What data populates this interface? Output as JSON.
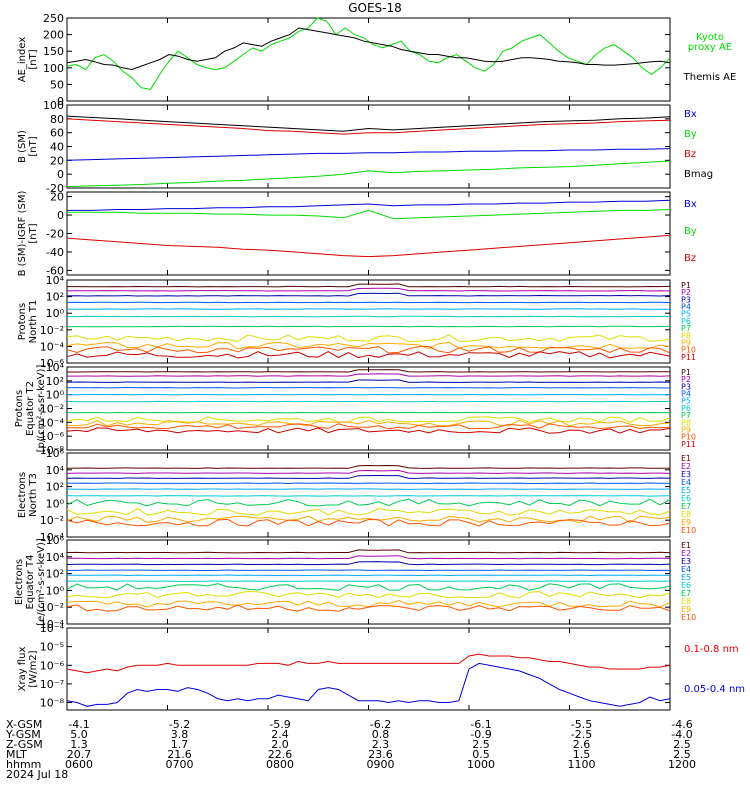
{
  "title": "GOES-18",
  "x_ticks": [
    "0600",
    "0700",
    "0800",
    "0900",
    "1000",
    "1100",
    "1200"
  ],
  "ephemeris": {
    "rows": [
      {
        "label": "X-GSM",
        "values": [
          "-4.1",
          "-5.2",
          "-5.9",
          "-6.2",
          "-6.1",
          "-5.5",
          "-4.6"
        ]
      },
      {
        "label": "Y-GSM",
        "values": [
          "5.0",
          "3.8",
          "2.4",
          "0.8",
          "-0.9",
          "-2.5",
          "-4.0"
        ]
      },
      {
        "label": "Z-GSM",
        "values": [
          "1.3",
          "1.7",
          "2.0",
          "2.3",
          "2.5",
          "2.6",
          "2.5"
        ]
      },
      {
        "label": "MLT",
        "values": [
          "20.7",
          "21.6",
          "22.6",
          "23.6",
          "0.5",
          "1.5",
          "2.5"
        ]
      },
      {
        "label": "hhmm",
        "values": [
          "0600",
          "0700",
          "0800",
          "0900",
          "1000",
          "1100",
          "1200"
        ]
      }
    ],
    "date": "2024 Jul 18"
  },
  "colors": {
    "green": "#00dd00",
    "black": "#000000",
    "blue": "#0000dd",
    "red": "#dd0000",
    "P": [
      "#550000",
      "#aa00aa",
      "#0000aa",
      "#0055ff",
      "#00aaff",
      "#00cccc",
      "#00cc55",
      "#dddd00",
      "#ffaa00",
      "#ff5500",
      "#cc0000"
    ],
    "E": [
      "#550000",
      "#aa00aa",
      "#0000aa",
      "#0055ff",
      "#00aaff",
      "#00cccc",
      "#00cc55",
      "#dddd00",
      "#ffaa00",
      "#ff5500",
      "#cc0000"
    ]
  },
  "chart_data": [
    {
      "id": "ae",
      "type": "line",
      "ylabel": [
        "AE_index",
        "[nT]"
      ],
      "yticks": [
        "250",
        "200",
        "150",
        "100",
        "50",
        "0"
      ],
      "series": [
        {
          "name": "Kyoto proxy AE",
          "color": "green"
        },
        {
          "name": "Themis AE",
          "color": "black"
        }
      ],
      "ylim": [
        0,
        250
      ],
      "values": {
        "Kyoto proxy AE": [
          105,
          110,
          95,
          130,
          140,
          120,
          90,
          70,
          40,
          35,
          80,
          120,
          150,
          130,
          110,
          100,
          95,
          100,
          120,
          140,
          160,
          150,
          170,
          180,
          190,
          210,
          220,
          250,
          240,
          200,
          220,
          200,
          190,
          170,
          160,
          170,
          180,
          150,
          140,
          120,
          115,
          130,
          140,
          120,
          100,
          90,
          110,
          150,
          160,
          180,
          190,
          200,
          175,
          150,
          130,
          120,
          110,
          140,
          160,
          170,
          150,
          130,
          100,
          80,
          100,
          130
        ],
        "Themis AE": [
          115,
          120,
          125,
          118,
          110,
          108,
          100,
          95,
          105,
          115,
          125,
          140,
          135,
          125,
          120,
          125,
          130,
          150,
          160,
          175,
          170,
          165,
          180,
          190,
          200,
          220,
          215,
          210,
          205,
          200,
          195,
          190,
          180,
          175,
          170,
          165,
          155,
          150,
          145,
          140,
          140,
          135,
          130,
          130,
          125,
          120,
          118,
          120,
          125,
          130,
          130,
          128,
          125,
          120,
          118,
          115,
          110,
          110,
          108,
          108,
          110,
          112,
          115,
          118,
          120,
          115
        ]
      }
    },
    {
      "id": "bsm",
      "type": "line",
      "ylabel": [
        "B (SM)",
        "[nT]"
      ],
      "yticks": [
        "100",
        "80",
        "60",
        "40",
        "20",
        "0",
        "-20"
      ],
      "ylim": [
        -20,
        100
      ],
      "series": [
        {
          "name": "Bx",
          "color": "blue"
        },
        {
          "name": "By",
          "color": "green"
        },
        {
          "name": "Bz",
          "color": "red"
        },
        {
          "name": "Bmag",
          "color": "black"
        }
      ],
      "values": {
        "Bx": [
          20,
          21,
          22,
          23,
          24,
          25,
          26,
          27,
          28,
          29,
          30,
          30,
          31,
          31,
          32,
          32,
          33,
          33,
          34,
          34,
          35,
          35,
          36,
          36,
          37
        ],
        "By": [
          -18,
          -17,
          -16,
          -15,
          -13,
          -12,
          -10,
          -9,
          -7,
          -5,
          -3,
          0,
          5,
          2,
          4,
          5,
          6,
          7,
          9,
          10,
          11,
          13,
          15,
          17,
          19
        ],
        "Bz": [
          80,
          78,
          76,
          74,
          72,
          70,
          68,
          66,
          63,
          62,
          60,
          58,
          60,
          60,
          62,
          64,
          66,
          68,
          70,
          72,
          73,
          74,
          76,
          77,
          78
        ],
        "Bmag": [
          84,
          82,
          80,
          78,
          76,
          74,
          72,
          70,
          68,
          66,
          64,
          62,
          66,
          64,
          66,
          68,
          70,
          72,
          74,
          76,
          77,
          78,
          80,
          81,
          83
        ]
      }
    },
    {
      "id": "bigrf",
      "type": "line",
      "ylabel": [
        "B (SM)-IGRF (SM)",
        "[nT]"
      ],
      "yticks": [
        "20",
        "0",
        "-20",
        "-40",
        "-60"
      ],
      "ylim": [
        -65,
        25
      ],
      "series": [
        {
          "name": "Bx",
          "color": "blue"
        },
        {
          "name": "By",
          "color": "green"
        },
        {
          "name": "Bz",
          "color": "red"
        }
      ],
      "values": {
        "Bx": [
          5,
          5,
          6,
          6,
          7,
          7,
          8,
          8,
          9,
          9,
          10,
          11,
          12,
          10,
          11,
          11,
          12,
          12,
          13,
          13,
          14,
          14,
          15,
          15,
          16
        ],
        "By": [
          3,
          3,
          3,
          2,
          2,
          2,
          1,
          1,
          0,
          0,
          -1,
          -3,
          5,
          -4,
          -3,
          -2,
          -1,
          0,
          1,
          2,
          3,
          4,
          5,
          5,
          6
        ],
        "Bz": [
          -25,
          -27,
          -29,
          -31,
          -33,
          -34,
          -35,
          -37,
          -38,
          -40,
          -42,
          -44,
          -45,
          -44,
          -42,
          -40,
          -38,
          -36,
          -34,
          -32,
          -30,
          -28,
          -26,
          -24,
          -22
        ]
      }
    },
    {
      "id": "pn",
      "type": "line",
      "log": true,
      "ylabel": [
        "Protons",
        "North T1"
      ],
      "yticks": [
        "10⁴",
        "10²",
        "10⁰",
        "10⁻²",
        "10⁻⁴",
        "10⁻⁶"
      ],
      "ylim": [
        -6,
        4
      ],
      "series": [
        {
          "name": "P1"
        },
        {
          "name": "P2"
        },
        {
          "name": "P3"
        },
        {
          "name": "P4"
        },
        {
          "name": "P5"
        },
        {
          "name": "P6"
        },
        {
          "name": "P7"
        },
        {
          "name": "P8"
        },
        {
          "name": "P9"
        },
        {
          "name": "P10"
        },
        {
          "name": "P11"
        }
      ],
      "levels": [
        3.2,
        2.7,
        2.1,
        1.3,
        0.5,
        -0.4,
        -1.6,
        -3.0,
        -3.9,
        -4.4,
        -5.0
      ]
    },
    {
      "id": "pe",
      "type": "line",
      "log": true,
      "ylabel": [
        "Protons",
        "Equator T2",
        "[p/(cm²-s-sr-keV)]"
      ],
      "yticks": [
        "10⁴",
        "10²",
        "10⁰",
        "10⁻²",
        "10⁻⁴",
        "10⁻⁶",
        "10⁻⁸"
      ],
      "ylim": [
        -8,
        4
      ],
      "series": [
        {
          "name": "P1"
        },
        {
          "name": "P2"
        },
        {
          "name": "P3"
        },
        {
          "name": "P4"
        },
        {
          "name": "P5"
        },
        {
          "name": "P6"
        },
        {
          "name": "P7"
        },
        {
          "name": "P8"
        },
        {
          "name": "P9"
        },
        {
          "name": "P10"
        },
        {
          "name": "P11"
        }
      ],
      "levels": [
        3.3,
        2.7,
        1.8,
        1.0,
        0.0,
        -1.0,
        -2.6,
        -3.6,
        -4.1,
        -4.6,
        -5.2
      ]
    },
    {
      "id": "en",
      "type": "line",
      "log": true,
      "ylabel": [
        "Electrons",
        "North T3"
      ],
      "yticks": [
        "10⁶",
        "10⁴",
        "10²",
        "10⁰",
        "10⁻²",
        "10⁻⁴"
      ],
      "ylim": [
        -4,
        6
      ],
      "series": [
        {
          "name": "E1"
        },
        {
          "name": "E2"
        },
        {
          "name": "E3"
        },
        {
          "name": "E4"
        },
        {
          "name": "E5"
        },
        {
          "name": "E6"
        },
        {
          "name": "E7"
        },
        {
          "name": "E8"
        },
        {
          "name": "E9"
        },
        {
          "name": "E10"
        }
      ],
      "levels": [
        4.2,
        3.6,
        3.0,
        2.4,
        1.7,
        0.9,
        0.1,
        -1.0,
        -1.9,
        -2.3
      ]
    },
    {
      "id": "ee",
      "type": "line",
      "log": true,
      "ylabel": [
        "Electrons",
        "Equator T4",
        "[e/(cm²-s-sr-keV)]"
      ],
      "yticks": [
        "10⁶",
        "10⁴",
        "10²",
        "10⁰",
        "10⁻²",
        "10⁻⁴"
      ],
      "ylim": [
        -4,
        6
      ],
      "series": [
        {
          "name": "E1"
        },
        {
          "name": "E2"
        },
        {
          "name": "E3"
        },
        {
          "name": "E4"
        },
        {
          "name": "E5"
        },
        {
          "name": "E6"
        },
        {
          "name": "E7"
        },
        {
          "name": "E8"
        },
        {
          "name": "E9"
        },
        {
          "name": "E10"
        }
      ],
      "levels": [
        4.5,
        3.8,
        3.1,
        2.4,
        1.8,
        1.1,
        0.4,
        -0.5,
        -1.6,
        -2.1
      ]
    },
    {
      "id": "xray",
      "type": "line",
      "log": true,
      "ylabel": [
        "Xray flux",
        "[W/m2]"
      ],
      "yticks": [
        "10⁻⁴",
        "10⁻⁵",
        "10⁻⁶",
        "10⁻⁷",
        "10⁻⁸"
      ],
      "ylim": [
        -8.4,
        -4
      ],
      "series": [
        {
          "name": "0.1-0.8 nm",
          "color": "red"
        },
        {
          "name": "0.05-0.4 nm",
          "color": "blue"
        }
      ],
      "values": {
        "0.1-0.8 nm": [
          -6.2,
          -6.3,
          -6.4,
          -6.3,
          -6.2,
          -6.3,
          -6.1,
          -6.0,
          -6.0,
          -6.0,
          -5.9,
          -6.0,
          -6.0,
          -6.0,
          -6.0,
          -6.0,
          -6.0,
          -6.0,
          -6.0,
          -5.9,
          -5.9,
          -5.9,
          -6.0,
          -5.8,
          -5.9,
          -5.9,
          -5.8,
          -5.9,
          -5.9,
          -5.9,
          -5.9,
          -5.9,
          -5.9,
          -5.9,
          -5.9,
          -5.9,
          -5.9,
          -5.9,
          -5.9,
          -5.9,
          -5.5,
          -5.4,
          -5.5,
          -5.5,
          -5.5,
          -5.6,
          -5.6,
          -5.7,
          -5.8,
          -5.8,
          -5.9,
          -6.0,
          -6.1,
          -6.1,
          -6.2,
          -6.2,
          -6.2,
          -6.2,
          -6.1,
          -6.1,
          -6.0
        ],
        "0.05-0.4 nm": [
          -7.9,
          -8.0,
          -8.2,
          -8.1,
          -8.1,
          -8.0,
          -7.5,
          -7.3,
          -7.4,
          -7.3,
          -7.3,
          -7.4,
          -7.2,
          -7.3,
          -7.5,
          -7.8,
          -7.9,
          -7.8,
          -7.9,
          -7.8,
          -7.8,
          -7.6,
          -7.7,
          -7.8,
          -7.9,
          -7.3,
          -7.2,
          -7.3,
          -7.6,
          -7.9,
          -7.9,
          -7.9,
          -8.0,
          -7.9,
          -8.0,
          -7.9,
          -7.9,
          -8.0,
          -8.0,
          -7.9,
          -6.2,
          -5.9,
          -6.0,
          -6.1,
          -6.2,
          -6.3,
          -6.5,
          -6.7,
          -7.0,
          -7.3,
          -7.5,
          -7.7,
          -7.9,
          -8.0,
          -8.1,
          -8.2,
          -8.1,
          -8.0,
          -7.7,
          -7.9,
          -7.8
        ]
      }
    }
  ]
}
